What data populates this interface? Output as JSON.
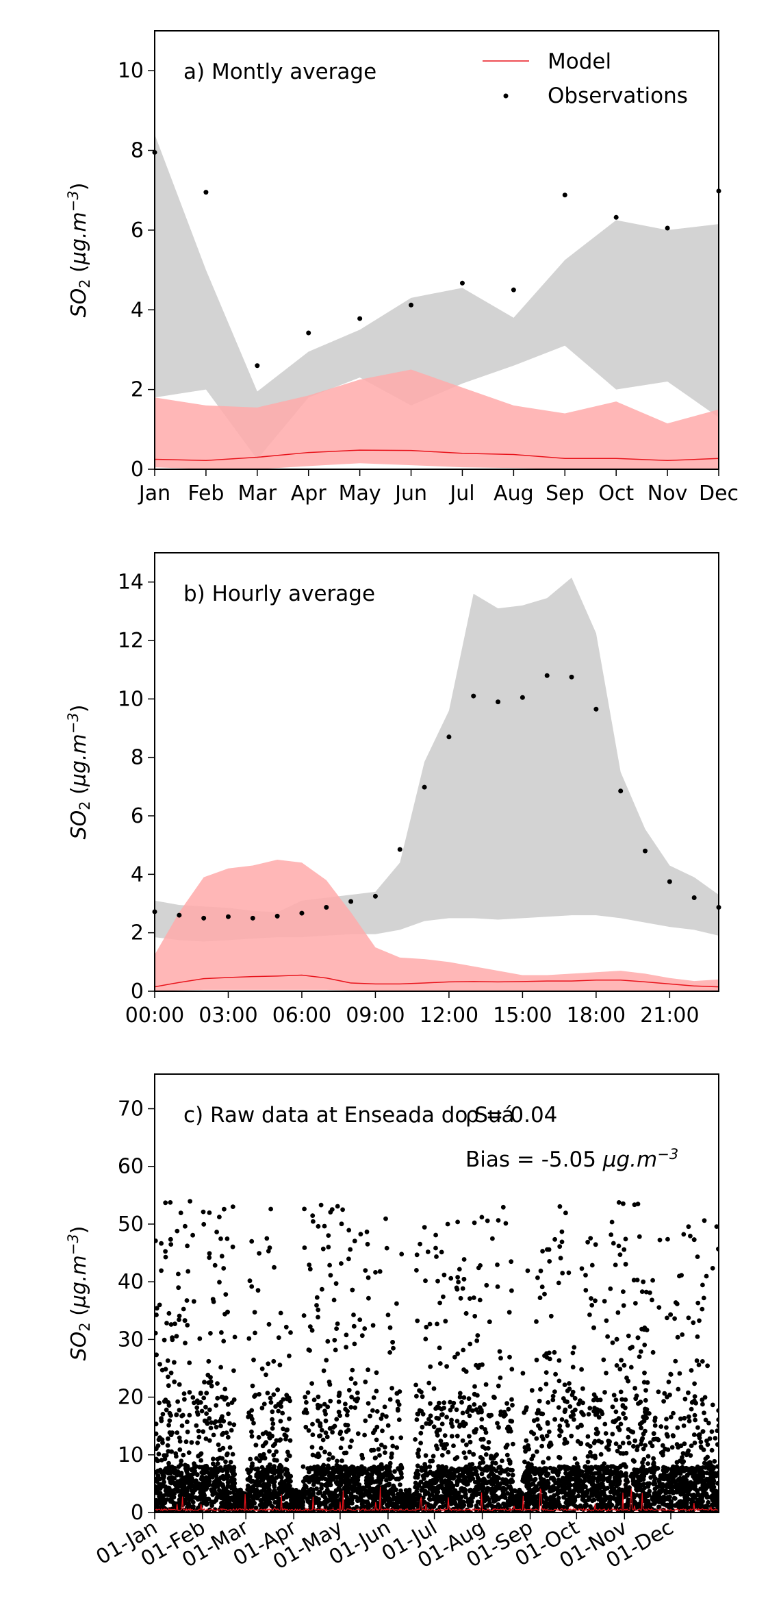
{
  "chart_data": [
    {
      "type": "line",
      "panel_label": "a) Montly average",
      "ylabel": "SO_2 (µg.m^-3)",
      "ylim": [
        0,
        11
      ],
      "yticks": [
        0,
        2,
        4,
        6,
        8,
        10
      ],
      "xticks": [
        "Jan",
        "Feb",
        "Mar",
        "Apr",
        "May",
        "Jun",
        "Jul",
        "Aug",
        "Sep",
        "Oct",
        "Nov",
        "Dec"
      ],
      "legend": {
        "position": "top-right",
        "entries": [
          "Model",
          "Observations"
        ]
      },
      "observations": [
        7.95,
        6.95,
        2.6,
        3.42,
        3.78,
        4.12,
        4.67,
        4.5,
        6.88,
        6.32,
        6.05,
        6.98
      ],
      "obs_band": {
        "lower": [
          1.8,
          2.0,
          0.25,
          1.8,
          2.3,
          1.6,
          2.15,
          2.6,
          3.1,
          2.0,
          2.2,
          1.3
        ],
        "upper": [
          8.4,
          5.0,
          1.95,
          2.95,
          3.5,
          4.3,
          4.55,
          3.8,
          5.25,
          6.25,
          6.0,
          6.15
        ]
      },
      "model_mean": [
        0.25,
        0.22,
        0.3,
        0.42,
        0.48,
        0.47,
        0.4,
        0.37,
        0.27,
        0.27,
        0.22,
        0.27
      ],
      "model_band": {
        "lower": [
          0.05,
          0.0,
          0.0,
          0.08,
          0.15,
          0.1,
          0.05,
          0.03,
          0.0,
          0.0,
          0.0,
          0.0
        ],
        "upper": [
          1.8,
          1.6,
          1.55,
          1.85,
          2.25,
          2.5,
          2.05,
          1.6,
          1.4,
          1.7,
          1.15,
          1.5
        ]
      },
      "colors": {
        "model": "#e8131b",
        "model_band": "#ffaaaa",
        "obs_band": "#d3d3d3",
        "obs": "#000000"
      }
    },
    {
      "type": "line",
      "panel_label": "b) Hourly average",
      "ylabel": "SO_2 (µg.m^-3)",
      "ylim": [
        0,
        15
      ],
      "yticks": [
        0,
        2,
        4,
        6,
        8,
        10,
        12,
        14
      ],
      "xticks": [
        "00:00",
        "03:00",
        "06:00",
        "09:00",
        "12:00",
        "15:00",
        "18:00",
        "21:00"
      ],
      "observations": [
        2.72,
        2.6,
        2.5,
        2.55,
        2.5,
        2.57,
        2.67,
        2.87,
        3.07,
        3.25,
        4.85,
        6.98,
        8.7,
        10.1,
        9.9,
        10.05,
        10.8,
        10.75,
        9.65,
        6.85,
        4.8,
        3.75,
        3.2,
        2.87
      ],
      "obs_band": {
        "lower": [
          1.85,
          1.75,
          1.7,
          1.75,
          1.8,
          1.85,
          1.85,
          1.9,
          1.95,
          1.95,
          2.1,
          2.4,
          2.5,
          2.5,
          2.45,
          2.5,
          2.55,
          2.6,
          2.6,
          2.5,
          2.35,
          2.2,
          2.1,
          1.9
        ],
        "upper": [
          3.1,
          2.95,
          2.9,
          2.85,
          2.75,
          2.7,
          3.1,
          3.2,
          3.3,
          3.4,
          4.4,
          7.85,
          9.6,
          13.6,
          13.1,
          13.2,
          13.45,
          14.15,
          12.25,
          7.5,
          5.55,
          4.3,
          3.9,
          3.3
        ],
        "upper_extra": []
      },
      "model_mean": [
        0.15,
        0.3,
        0.43,
        0.47,
        0.5,
        0.52,
        0.55,
        0.45,
        0.28,
        0.25,
        0.25,
        0.28,
        0.32,
        0.33,
        0.32,
        0.33,
        0.35,
        0.35,
        0.38,
        0.38,
        0.32,
        0.25,
        0.18,
        0.15
      ],
      "model_band": {
        "lower": [
          0.0,
          0.03,
          0.05,
          0.05,
          0.05,
          0.05,
          0.05,
          0.05,
          0.03,
          0.02,
          0.02,
          0.02,
          0.02,
          0.02,
          0.02,
          0.02,
          0.02,
          0.02,
          0.02,
          0.02,
          0.02,
          0.02,
          0.01,
          0.0
        ],
        "upper": [
          1.25,
          2.7,
          3.9,
          4.2,
          4.3,
          4.5,
          4.4,
          3.8,
          2.7,
          1.5,
          1.15,
          1.1,
          1.0,
          0.85,
          0.7,
          0.55,
          0.55,
          0.6,
          0.65,
          0.7,
          0.6,
          0.45,
          0.35,
          0.4
        ]
      },
      "colors": {
        "model": "#e8131b",
        "model_band": "#ffaaaa",
        "obs_band": "#d3d3d3",
        "obs": "#000000"
      }
    },
    {
      "type": "scatter",
      "panel_label": "c) Raw data at Enseada do Suá",
      "overlay_label": "ρ = 0.04",
      "bias_label": "Bias = -5.05 µg.m^-3",
      "ylabel": "SO_2 (µg.m^-3)",
      "ylim": [
        0,
        76
      ],
      "yticks": [
        0,
        10,
        20,
        30,
        40,
        50,
        60,
        70
      ],
      "xlim_days": [
        0,
        365
      ],
      "xticks": [
        "01-Jan",
        "01-Feb",
        "01-Mar",
        "01-Apr",
        "01-May",
        "01-Jun",
        "01-Jul",
        "01-Aug",
        "01-Sep",
        "01-Oct",
        "01-Nov",
        "01-Dec"
      ],
      "xtick_days": [
        0,
        31,
        59,
        90,
        120,
        151,
        181,
        212,
        243,
        273,
        304,
        334
      ],
      "description_note": "dense hourly observations (black dots, mostly below 10 with peaks up to ~54) and hourly model values (red, mostly below 2)",
      "colors": {
        "model": "#e8131b",
        "obs": "#000000"
      }
    }
  ]
}
